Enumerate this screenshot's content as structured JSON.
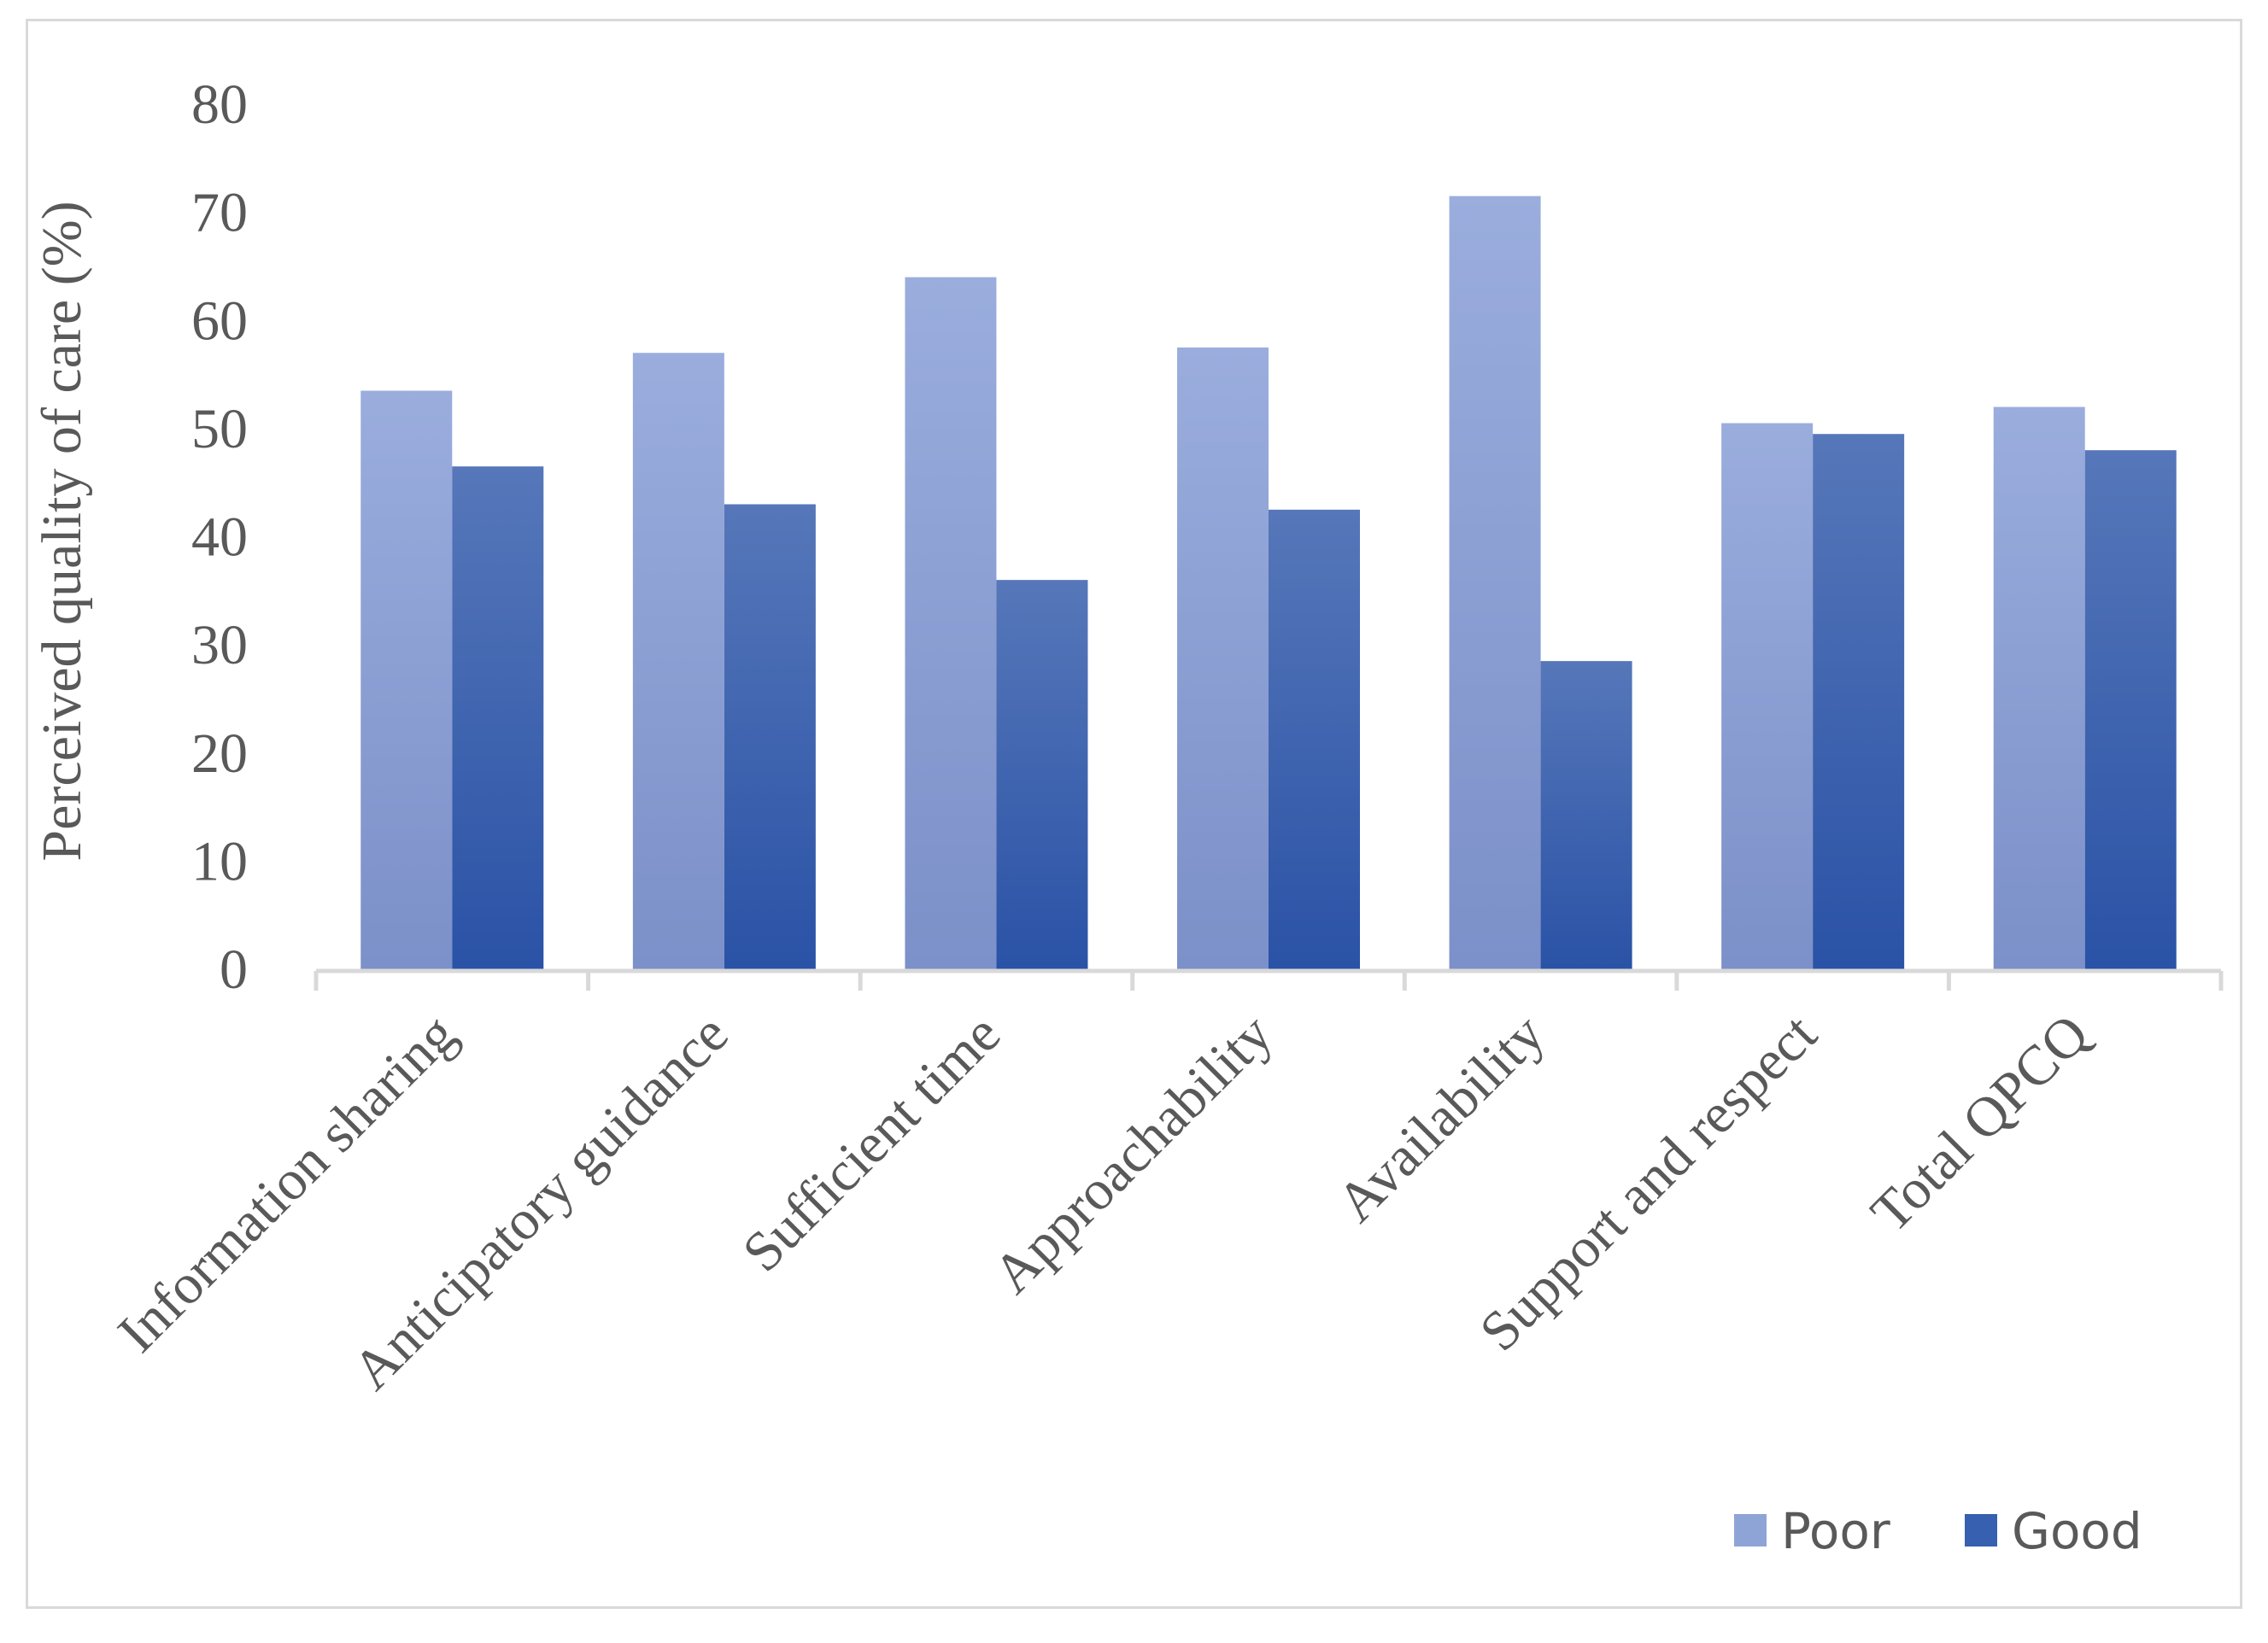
{
  "chart_data": {
    "type": "bar",
    "title": "",
    "xlabel": "",
    "ylabel": "Perceived quality of care (%)",
    "ylim": [
      0,
      80
    ],
    "yticks": [
      0,
      10,
      20,
      30,
      40,
      50,
      60,
      70,
      80
    ],
    "grid": false,
    "legend_position": "bottom-right",
    "categories": [
      "Information sharing",
      "Anticipatory guidance",
      "Sufficient time",
      "Approachability",
      "Availability",
      "Support and respect",
      "Total QPCQ"
    ],
    "series": [
      {
        "name": "Poor",
        "color": "#8fa4d6",
        "values": [
          53.5,
          57,
          64,
          57.5,
          71.5,
          50.5,
          52
        ]
      },
      {
        "name": "Good",
        "color": "#3760b0",
        "values": [
          46.5,
          43,
          36,
          42.5,
          28.5,
          49.5,
          48
        ]
      }
    ]
  }
}
